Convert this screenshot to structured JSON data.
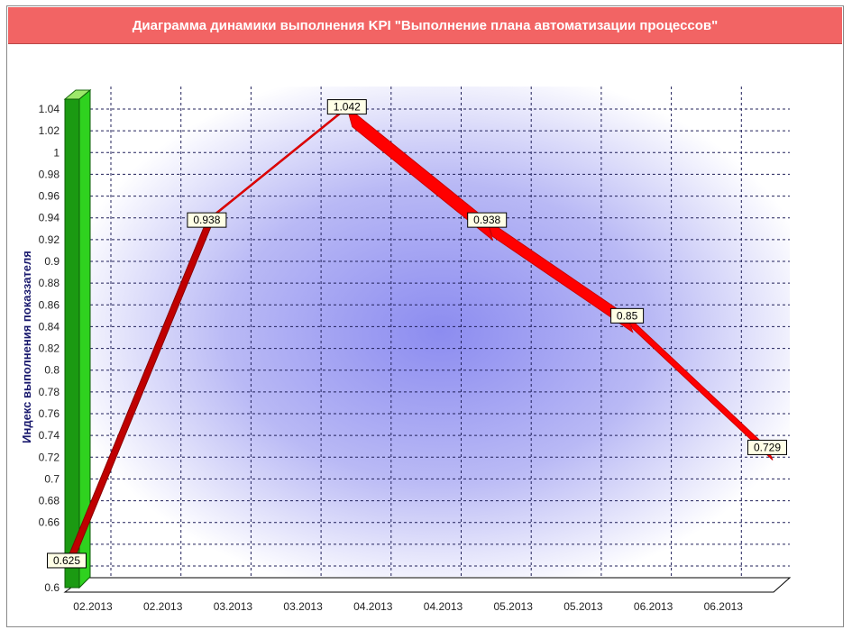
{
  "title": "Диаграмма динамики выполнения KPI \"Выполнение плана автоматизации процессов\"",
  "colors": {
    "title_bg": "#f26464",
    "line": "#ff0000",
    "line_dark": "#c00000",
    "axis_bar": "#2aa81a",
    "plot_glow": "#8c8cf0"
  },
  "chart_data": {
    "type": "line",
    "ylabel": "Индекс выполнения показзателя",
    "xlabel": "",
    "ylim": [
      0.6,
      1.05
    ],
    "y_ticks": [
      "1.04",
      "1.02",
      "1",
      "0.98",
      "0.96",
      "0.94",
      "0.92",
      "0.9",
      "0.88",
      "0.86",
      "0.84",
      "0.82",
      "0.8",
      "0.78",
      "0.76",
      "0.74",
      "0.72",
      "0.7",
      "0.68",
      "0.66",
      "0.6"
    ],
    "categories": [
      "02.2013",
      "02.2013",
      "03.2013",
      "03.2013",
      "04.2013",
      "04.2013",
      "05.2013",
      "05.2013",
      "06.2013",
      "06.2013"
    ],
    "points": [
      {
        "x_index": 0,
        "value": 0.625,
        "label": "0.625"
      },
      {
        "x_index": 2,
        "value": 0.938,
        "label": "0.938"
      },
      {
        "x_index": 4,
        "value": 1.042,
        "label": "1.042"
      },
      {
        "x_index": 6,
        "value": 0.938,
        "label": "0.938"
      },
      {
        "x_index": 8,
        "value": 0.85,
        "label": "0.85"
      },
      {
        "x_index": 10,
        "value": 0.729,
        "label": "0.729"
      }
    ],
    "grid": true,
    "legend": "none"
  }
}
